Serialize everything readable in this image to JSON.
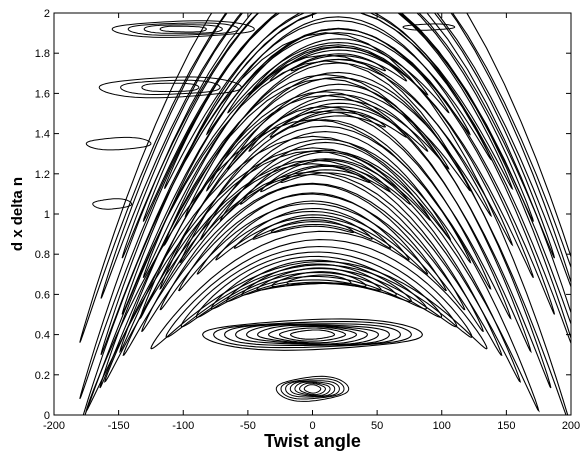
{
  "chart_data": {
    "type": "contour",
    "title": "",
    "xlabel": "Twist angle",
    "ylabel": "d x delta n",
    "xlim": [
      -200,
      200
    ],
    "ylim": [
      0,
      2
    ],
    "xticks": [
      -200,
      -150,
      -100,
      -50,
      0,
      50,
      100,
      150,
      200
    ],
    "yticks": [
      0,
      0.2,
      0.4,
      0.6,
      0.8,
      1,
      1.2,
      1.4,
      1.6,
      1.8,
      2
    ],
    "xtick_labels": [
      "-200",
      "-150",
      "-100",
      "-50",
      "0",
      "50",
      "100",
      "150",
      "200"
    ],
    "ytick_labels": [
      "0",
      "0.2",
      "0.4",
      "0.6",
      "0.8",
      "1",
      "1.2",
      "1.4",
      "1.6",
      "1.8",
      "2"
    ],
    "line_color": "#000000",
    "bands": [
      {
        "x_center": 0,
        "y_center": 0.13,
        "x_half_width": 28,
        "y_half_height": 0.06,
        "tilt": 0,
        "rings": 7
      },
      {
        "x_center": 0,
        "y_center": 0.4,
        "x_half_width": 85,
        "y_half_height": 0.075,
        "tilt": 0,
        "rings": 9
      },
      {
        "x_center": 5,
        "y_center": 0.67,
        "x_half_width": 130,
        "y_half_height": 0.075,
        "tilt": -0.0002,
        "rings": 10
      },
      {
        "x_center": 0,
        "y_center": 0.94,
        "x_half_width": 175,
        "y_half_height": 0.07,
        "tilt": -0.0003,
        "rings": 11
      },
      {
        "x_center": 10,
        "y_center": 1.2,
        "x_half_width": 190,
        "y_half_height": 0.07,
        "tilt": -0.00035,
        "rings": 11
      },
      {
        "x_center": 20,
        "y_center": 1.48,
        "x_half_width": 200,
        "y_half_height": 0.065,
        "tilt": -0.00035,
        "rings": 11
      },
      {
        "x_center": 20,
        "y_center": 1.76,
        "x_half_width": 200,
        "y_half_height": 0.06,
        "tilt": -0.00035,
        "rings": 11
      },
      {
        "x_center": -100,
        "y_center": 1.92,
        "x_half_width": 55,
        "y_half_height": 0.04,
        "tilt": 0,
        "rings": 4
      },
      {
        "x_center": -110,
        "y_center": 1.63,
        "x_half_width": 55,
        "y_half_height": 0.05,
        "tilt": 0,
        "rings": 3
      },
      {
        "x_center": -150,
        "y_center": 1.35,
        "x_half_width": 25,
        "y_half_height": 0.03,
        "tilt": 0,
        "rings": 1
      },
      {
        "x_center": -155,
        "y_center": 1.05,
        "x_half_width": 15,
        "y_half_height": 0.025,
        "tilt": 0,
        "rings": 1
      },
      {
        "x_center": 90,
        "y_center": 1.93,
        "x_half_width": 20,
        "y_half_height": 0.015,
        "tilt": 0,
        "rings": 1
      }
    ]
  }
}
